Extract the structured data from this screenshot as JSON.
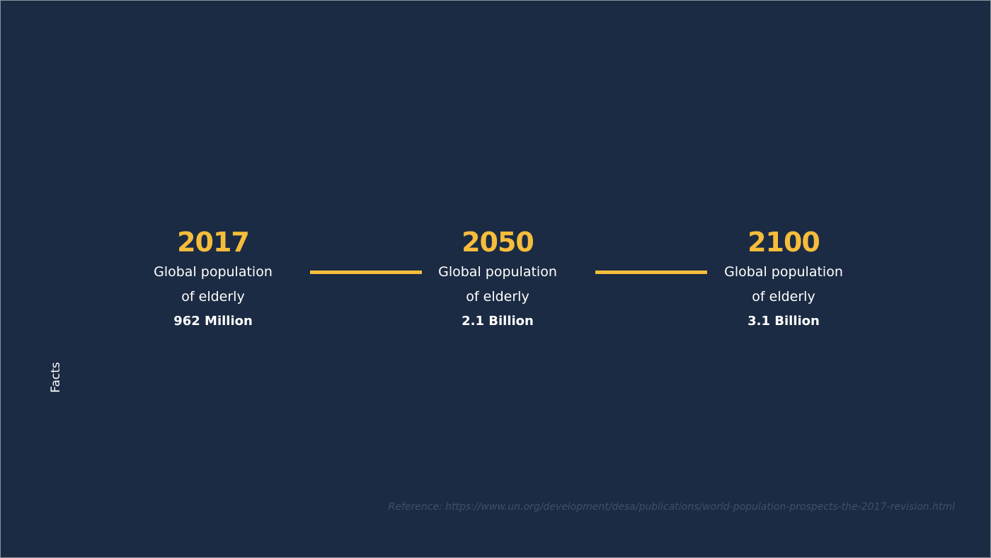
{
  "side_label": "Facts",
  "items": [
    {
      "year": "2017",
      "description": [
        "Global population",
        "of elderly"
      ],
      "value": "962 Million"
    },
    {
      "year": "2050",
      "description": [
        "Global population",
        "of elderly"
      ],
      "value": "2.1 Billion"
    },
    {
      "year": "2100",
      "description": [
        "Global population",
        "of elderly"
      ],
      "value": "3.1 Billion"
    }
  ],
  "reference": "Reference: https://www.un.org/development/desa/publications/world-population-prospects-the-2017-revision.html"
}
